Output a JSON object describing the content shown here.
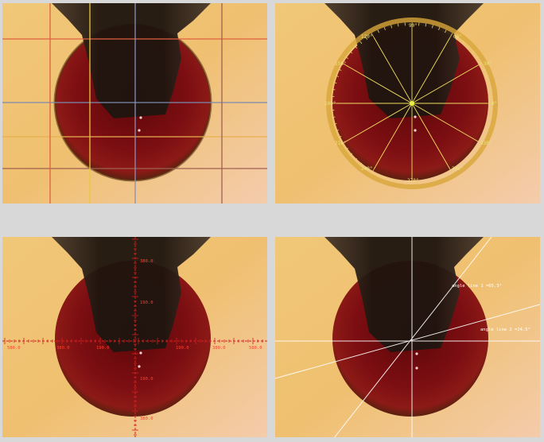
{
  "panels": {
    "grid": {
      "name": "grid-overlay-view"
    },
    "protractor": {
      "labels": {
        "deg90": "90°",
        "deg120": "120°",
        "deg60": "60°",
        "deg150": "150°",
        "deg30": "30°",
        "deg180": "180°",
        "deg0": "0°",
        "deg210": "210°",
        "deg330": "330°",
        "deg240": "240°",
        "deg300": "300°",
        "deg270": "270°"
      }
    },
    "ruler": {
      "labels": {
        "vt1": "380.0",
        "vt2": "190.0",
        "vb1": "190.0",
        "vb2": "380.0",
        "hl1": "380.0",
        "hl2": "190.0",
        "hr1": "190.0",
        "hr2": "380.0",
        "hfl": "580.0",
        "hfr": "580.0"
      }
    },
    "angle": {
      "line1_label": "angle line 1 =65.3°",
      "line2_label": "angle line 2 =24.5°"
    }
  },
  "colors": {
    "background": "#d8d8d8",
    "droplet": "#7a0f14",
    "needle": "#2a1e18",
    "ruler": "#d42020",
    "overlay_white": "#ffffff",
    "protractor": "#d8a63a"
  }
}
